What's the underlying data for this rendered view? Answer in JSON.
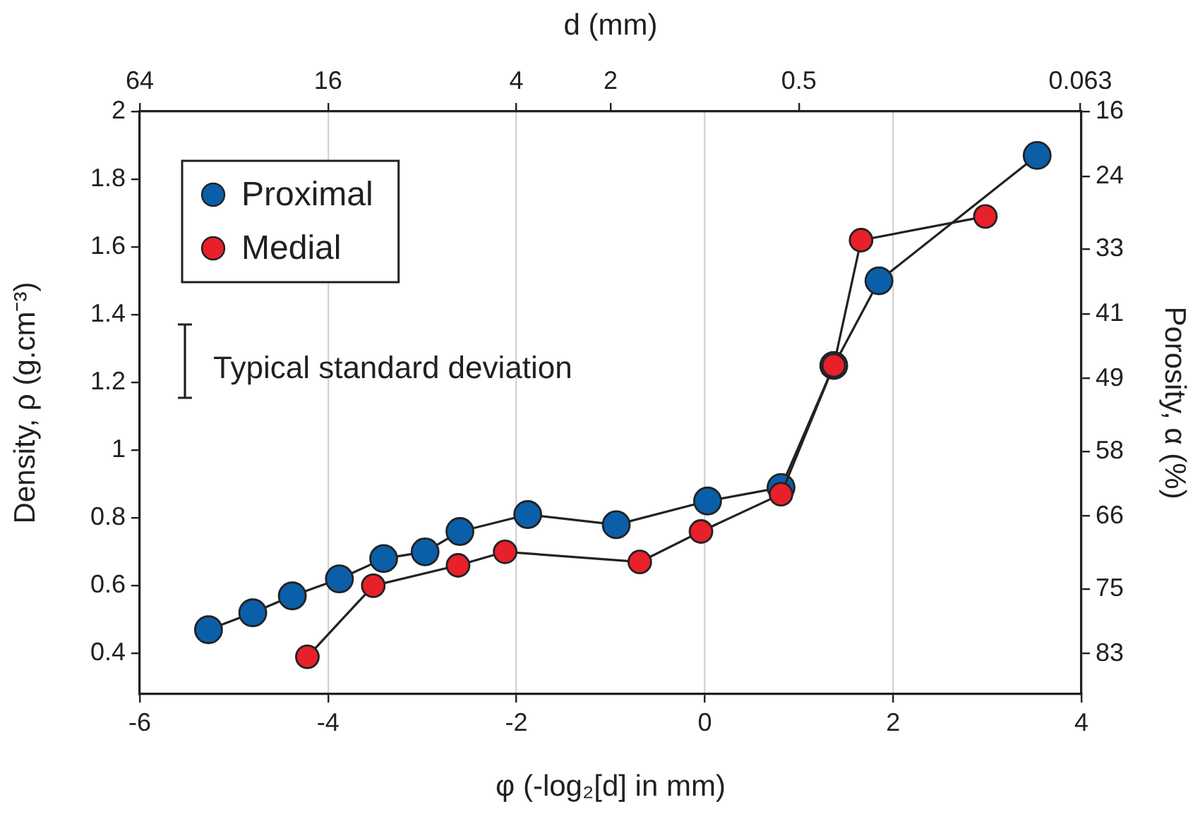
{
  "chart_data": {
    "type": "line",
    "xlabel": "φ (-log₂[d] in mm)",
    "x2label": "d (mm)",
    "ylabel": "Density, ρ (g.cm⁻³)",
    "y2label": "Porosity, α (%)",
    "xlim": [
      -6,
      4
    ],
    "xticks": [
      -6,
      -4,
      -2,
      0,
      2,
      4
    ],
    "x2lim": [
      64,
      0.0625
    ],
    "x2ticks": [
      64,
      16,
      4,
      2,
      0.5,
      0.063
    ],
    "log": "x2",
    "ylim": [
      0.28,
      2
    ],
    "yticks": [
      0.4,
      0.6,
      0.8,
      1,
      1.2,
      1.4,
      1.6,
      1.8,
      2
    ],
    "y2lim": [
      88,
      16
    ],
    "y2ticks": [
      16,
      24,
      33,
      41,
      49,
      58,
      66,
      75,
      83
    ],
    "grid": "x",
    "legend": "top left",
    "marker": "circle",
    "line_style": "solid",
    "annotations": [
      "Typical standard deviation"
    ],
    "series": [
      {
        "name": "Proximal",
        "color": "#0b5fa8",
        "x": [
          -5.27,
          -4.8,
          -4.38,
          -3.88,
          -3.41,
          -2.97,
          -2.6,
          -1.88,
          -0.94,
          0.03,
          0.81,
          1.37,
          1.85,
          3.53
        ],
        "values": [
          0.47,
          0.52,
          0.57,
          0.62,
          0.68,
          0.7,
          0.76,
          0.81,
          0.78,
          0.85,
          0.89,
          1.25,
          1.5,
          1.87
        ]
      },
      {
        "name": "Medial",
        "color": "#e8202a",
        "x": [
          -4.22,
          -3.52,
          -2.62,
          -2.12,
          -0.69,
          -0.04,
          0.81,
          1.37,
          1.66,
          2.98
        ],
        "values": [
          0.39,
          0.6,
          0.66,
          0.7,
          0.67,
          0.76,
          0.87,
          1.25,
          1.62,
          1.69
        ]
      }
    ]
  }
}
